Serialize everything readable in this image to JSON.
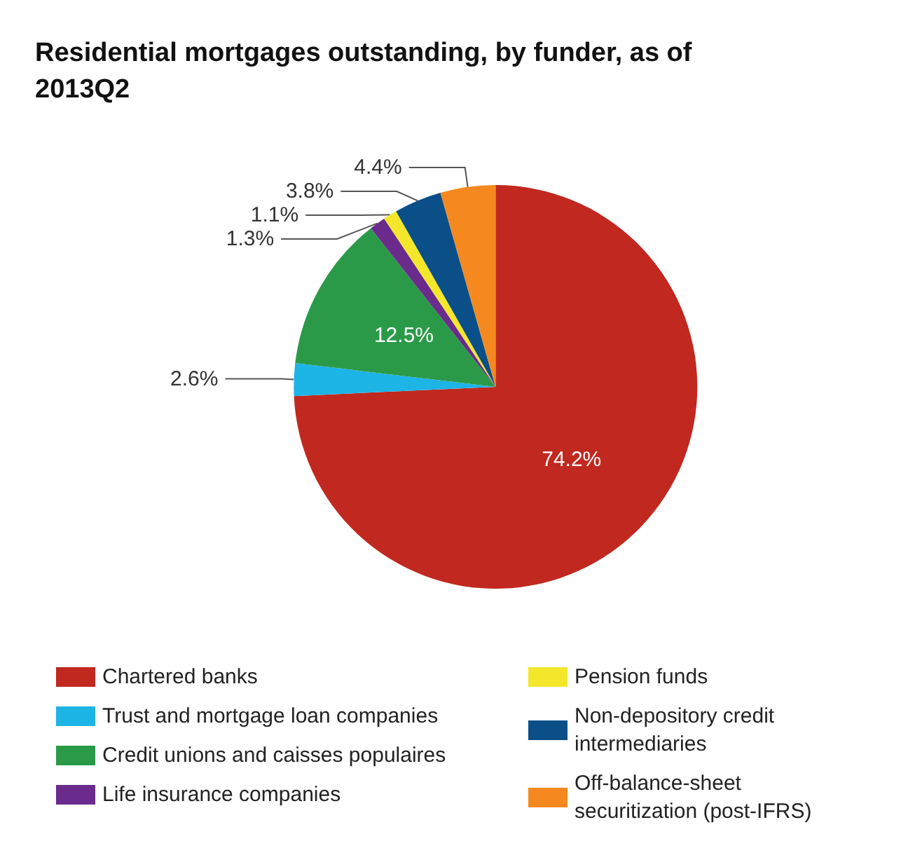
{
  "chart_data": {
    "type": "pie",
    "title": "Residential mortgages outstanding, by funder, as of 2013Q2",
    "categories": [
      "Chartered banks",
      "Trust and mortgage loan companies",
      "Credit unions and caisses populaires",
      "Life insurance companies",
      "Pension funds",
      "Non-depository credit intermediaries",
      "Off-balance-sheet securitization (post-IFRS)"
    ],
    "values": [
      74.2,
      2.6,
      12.5,
      1.3,
      1.1,
      3.8,
      4.4
    ],
    "value_labels": [
      "74.2%",
      "2.6%",
      "12.5%",
      "1.3%",
      "1.1%",
      "3.8%",
      "4.4%"
    ],
    "colors": [
      "#c1281f",
      "#1db4e6",
      "#2a9a48",
      "#6a2b8c",
      "#f4e62a",
      "#0b4f88",
      "#f5891f"
    ],
    "legend": "bottom"
  }
}
